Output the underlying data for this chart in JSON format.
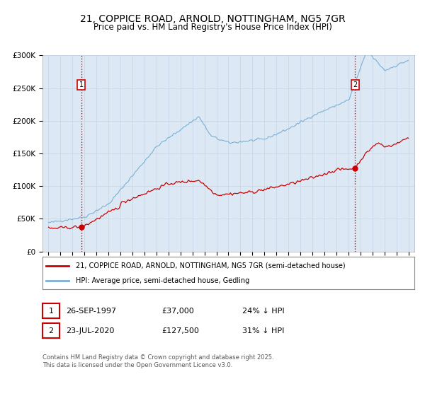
{
  "title_line1": "21, COPPICE ROAD, ARNOLD, NOTTINGHAM, NG5 7GR",
  "title_line2": "Price paid vs. HM Land Registry's House Price Index (HPI)",
  "background_color": "#dce9f5",
  "plot_bg_color": "#dce9f5",
  "legend_label_red": "21, COPPICE ROAD, ARNOLD, NOTTINGHAM, NG5 7GR (semi-detached house)",
  "legend_label_blue": "HPI: Average price, semi-detached house, Gedling",
  "footer_text": "Contains HM Land Registry data © Crown copyright and database right 2025.\nThis data is licensed under the Open Government Licence v3.0.",
  "annotation1": {
    "num": "1",
    "date": "26-SEP-1997",
    "price": "£37,000",
    "note": "24% ↓ HPI",
    "x_year": 1997.73,
    "y_val": 37000
  },
  "annotation2": {
    "num": "2",
    "date": "23-JUL-2020",
    "price": "£127,500",
    "note": "31% ↓ HPI",
    "x_year": 2020.55,
    "y_val": 127500
  },
  "ylim": [
    0,
    300000
  ],
  "xlim": [
    1994.5,
    2025.5
  ],
  "yticks": [
    0,
    50000,
    100000,
    150000,
    200000,
    250000,
    300000
  ],
  "ytick_labels": [
    "£0",
    "£50K",
    "£100K",
    "£150K",
    "£200K",
    "£250K",
    "£300K"
  ],
  "xticks": [
    1995,
    1996,
    1997,
    1998,
    1999,
    2000,
    2001,
    2002,
    2003,
    2004,
    2005,
    2006,
    2007,
    2008,
    2009,
    2010,
    2011,
    2012,
    2013,
    2014,
    2015,
    2016,
    2017,
    2018,
    2019,
    2020,
    2021,
    2022,
    2023,
    2024,
    2025
  ],
  "red_color": "#cc0000",
  "blue_color": "#7bafd4",
  "vline_color": "#cc0000",
  "grid_color": "#c8d8e8"
}
